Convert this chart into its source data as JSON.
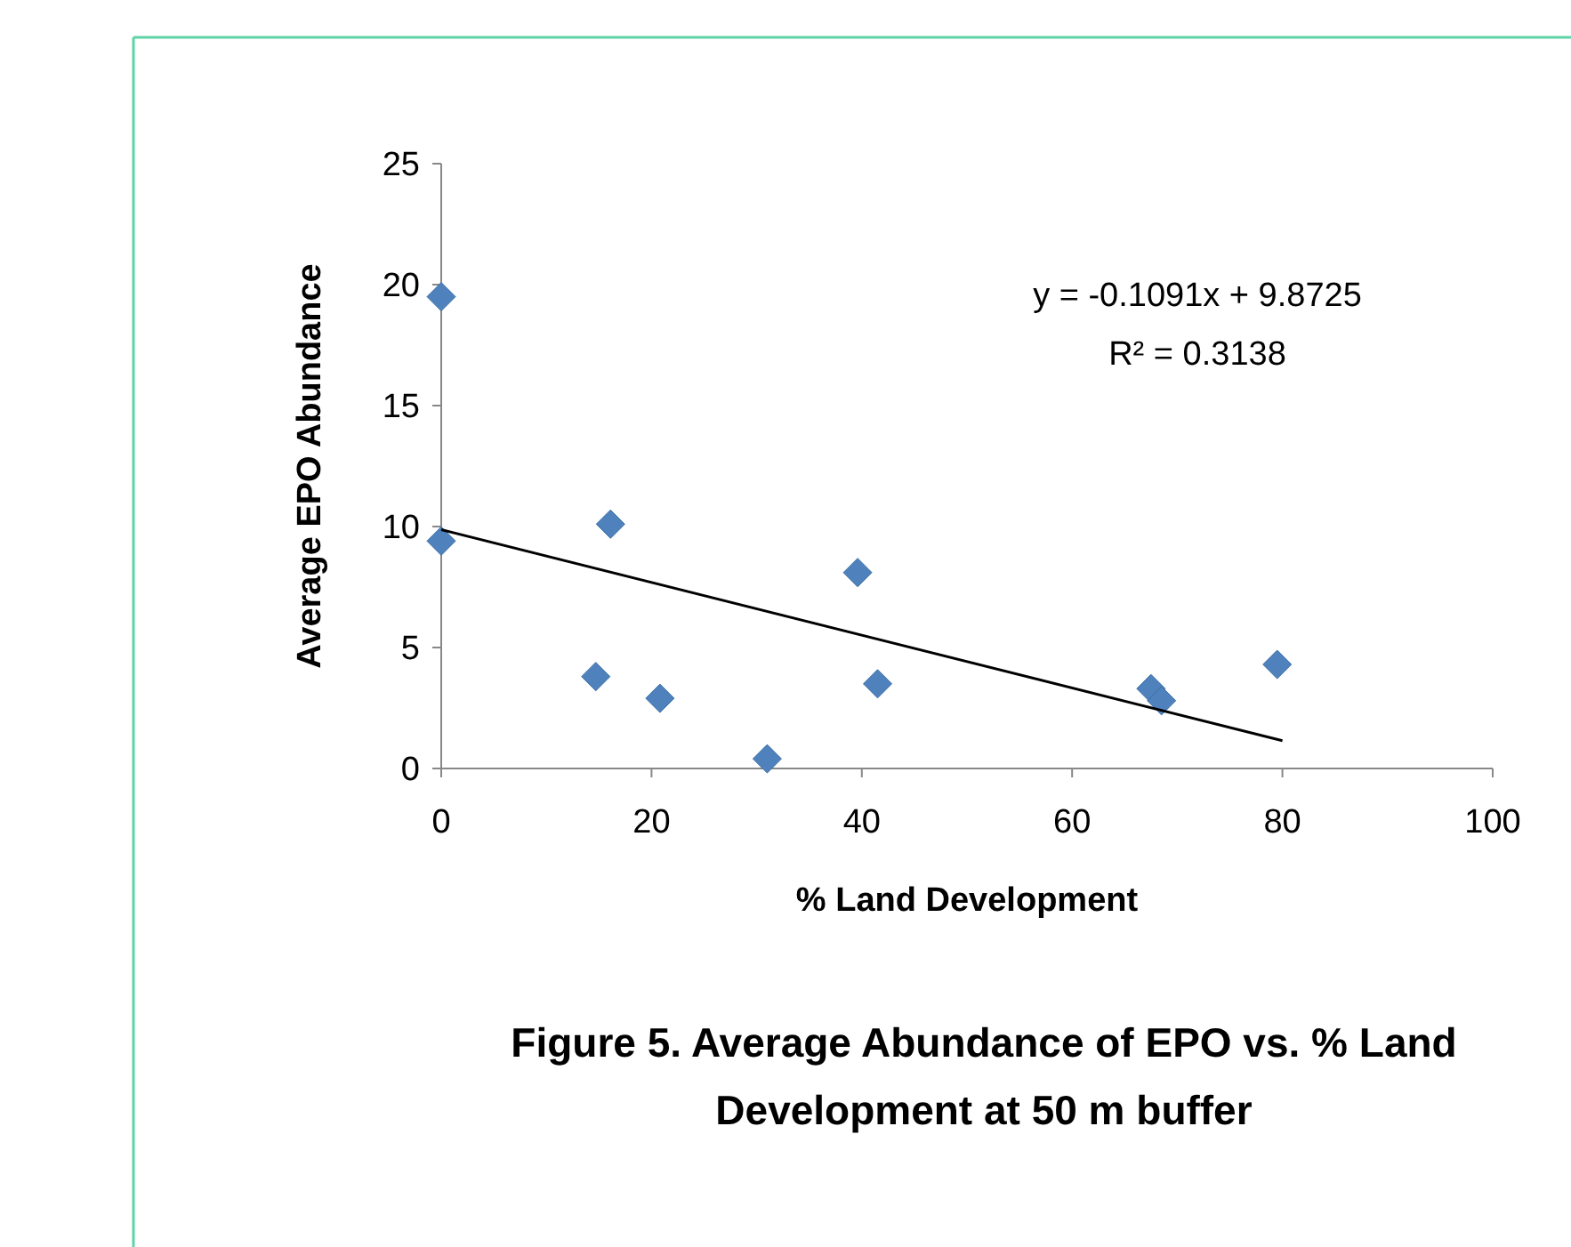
{
  "chart_data": {
    "type": "scatter",
    "title": "Figure 5. Average Abundance of EPO vs. % Land Development at 50 m buffer",
    "xlabel": "% Land Development",
    "ylabel": "Average EPO Abundance",
    "xlim": [
      0,
      100
    ],
    "xticks": [
      0,
      20,
      40,
      60,
      80,
      100
    ],
    "ylim": [
      0,
      25
    ],
    "yticks": [
      0,
      5,
      10,
      15,
      20,
      25
    ],
    "grid": false,
    "marker": "diamond",
    "annotations": [
      "y = -0.1091x + 9.8725",
      "R² = 0.3138"
    ],
    "series": [
      {
        "color": "#4f81bd",
        "x": [
          0,
          0,
          16.1,
          14.7,
          20.8,
          31,
          39.6,
          41.5,
          67.5,
          68.5,
          79.5
        ],
        "values": [
          19.5,
          9.4,
          10.1,
          3.8,
          2.9,
          0.4,
          8.1,
          3.5,
          3.3,
          2.8,
          4.3
        ]
      },
      {
        "type": "line",
        "color": "#000000",
        "marker": "none",
        "line_style": "solid",
        "x": [
          0,
          80
        ],
        "values": [
          9.87,
          1.15
        ]
      }
    ]
  }
}
